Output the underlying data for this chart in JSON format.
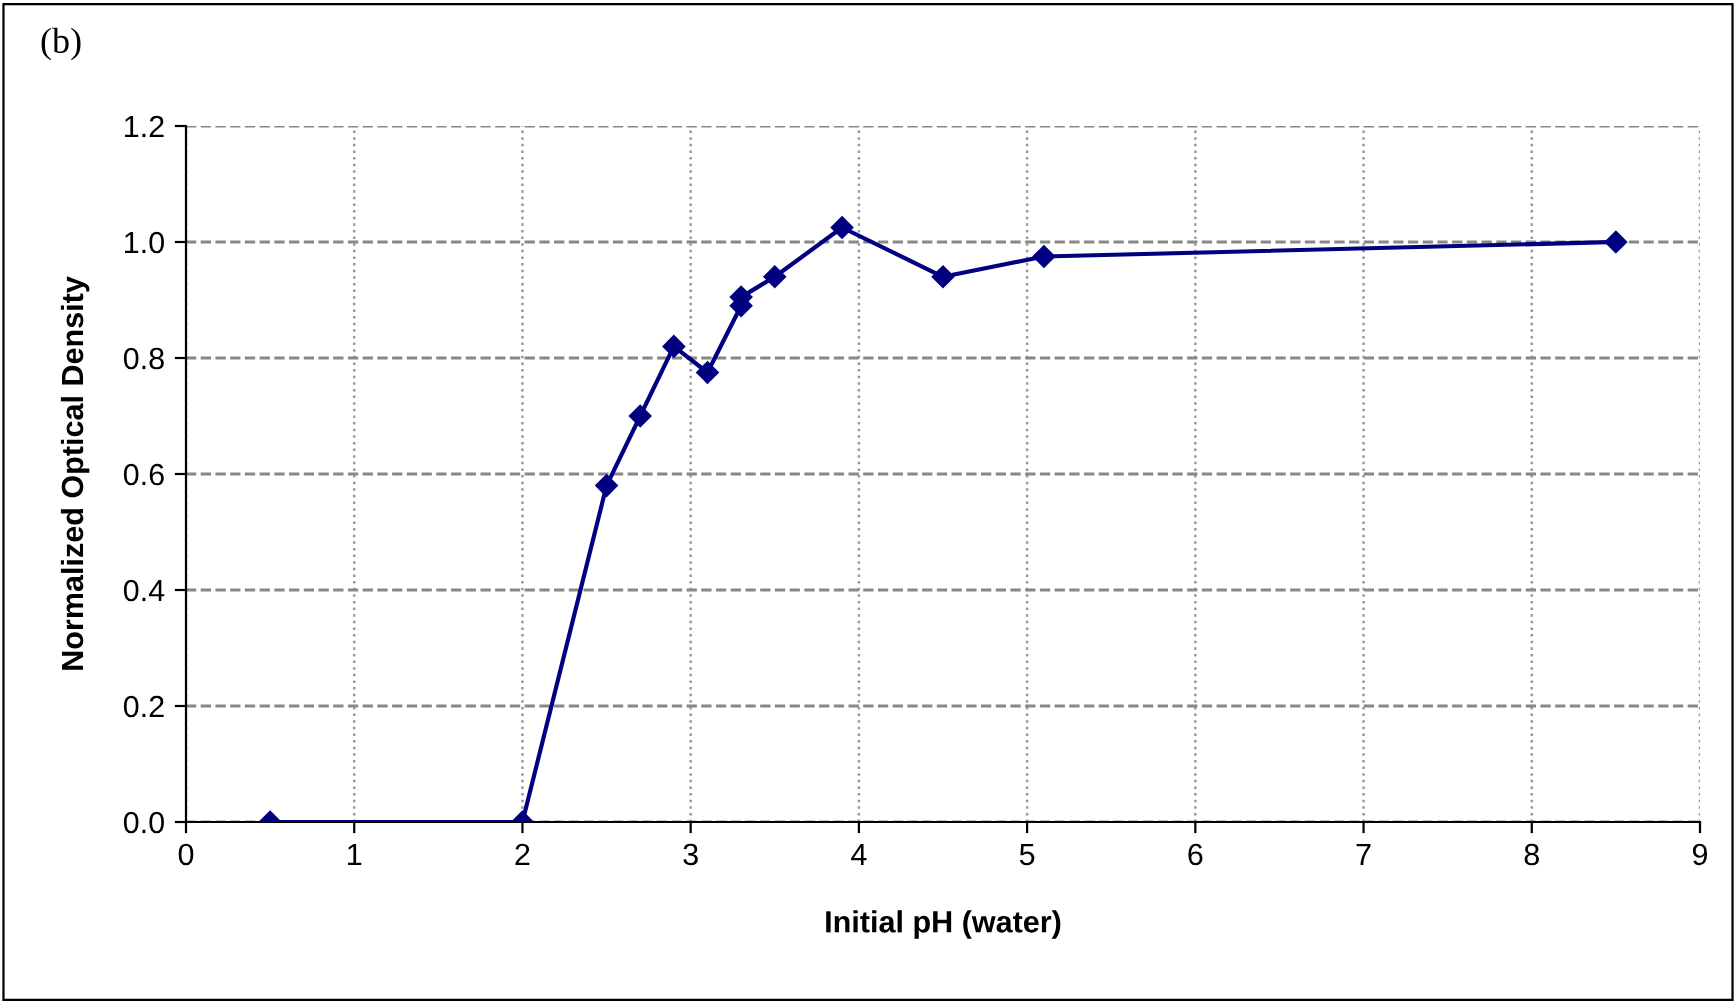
{
  "chart_data": {
    "type": "line",
    "title": "(b)",
    "xlabel": "Initial pH (water)",
    "ylabel": "Normalized Optical Density",
    "x": [
      0.5,
      2.0,
      2.5,
      2.7,
      2.9,
      3.1,
      3.3,
      3.3,
      3.5,
      3.9,
      4.5,
      5.1,
      8.5
    ],
    "series": [
      {
        "color": "#000080",
        "values": [
          0.0,
          0.0,
          0.58,
          0.7,
          0.82,
          0.775,
          0.89,
          0.905,
          0.94,
          1.025,
          0.94,
          0.975,
          1.0
        ]
      }
    ],
    "xlim": [
      0,
      9
    ],
    "xticks": [
      0,
      1,
      2,
      3,
      4,
      5,
      6,
      7,
      8,
      9
    ],
    "ylim": [
      0,
      1.2
    ],
    "yticks": [
      {
        "value": 0,
        "label": "0.0"
      },
      {
        "value": 0.2,
        "label": "0.2"
      },
      {
        "value": 0.4,
        "label": "0.4"
      },
      {
        "value": 0.6,
        "label": "0.6"
      },
      {
        "value": 0.8,
        "label": "0.8"
      },
      {
        "value": 1.0,
        "label": "1.0"
      },
      {
        "value": 1.2,
        "label": "1.2"
      }
    ],
    "grid": true,
    "marker": "diamond",
    "line_style": "solid"
  }
}
